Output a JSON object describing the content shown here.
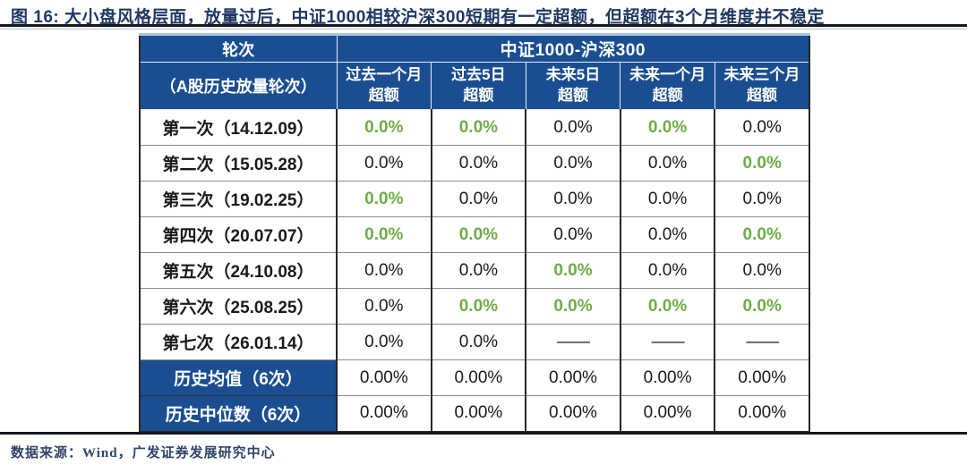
{
  "figure": {
    "title": "图 16: 大小盘风格层面，放量过后，中证1000相较沪深300短期有一定超额，但超额在3个月维度并不稳定",
    "source": "数据来源：Wind，广发证券发展研究中心"
  },
  "colors": {
    "title_navy": "#1F3864",
    "header_blue": "#1B4E91",
    "positive_green": "#6FAD47",
    "text_black": "#1A1A1A"
  },
  "table": {
    "corner_top": "轮次",
    "corner_bottom": "（A股历史放量轮次）",
    "group_header": "中证1000-沪深300",
    "col_headers": [
      {
        "line1": "过去一个月",
        "line2": "超额"
      },
      {
        "line1": "过去5日",
        "line2": "超额"
      },
      {
        "line1": "未来5日",
        "line2": "超额"
      },
      {
        "line1": "未来一个月",
        "line2": "超额"
      },
      {
        "line1": "未来三个月",
        "line2": "超额"
      }
    ],
    "rows": [
      {
        "label": "第一次（14.12.09）",
        "cells": [
          {
            "text": "0.0%",
            "color": "green"
          },
          {
            "text": "0.0%",
            "color": "green"
          },
          {
            "text": "0.0%",
            "color": "black"
          },
          {
            "text": "0.0%",
            "color": "green"
          },
          {
            "text": "0.0%",
            "color": "black"
          }
        ]
      },
      {
        "label": "第二次（15.05.28）",
        "cells": [
          {
            "text": "0.0%",
            "color": "black"
          },
          {
            "text": "0.0%",
            "color": "black"
          },
          {
            "text": "0.0%",
            "color": "black"
          },
          {
            "text": "0.0%",
            "color": "black"
          },
          {
            "text": "0.0%",
            "color": "green"
          }
        ]
      },
      {
        "label": "第三次（19.02.25）",
        "cells": [
          {
            "text": "0.0%",
            "color": "green"
          },
          {
            "text": "0.0%",
            "color": "black"
          },
          {
            "text": "0.0%",
            "color": "black"
          },
          {
            "text": "0.0%",
            "color": "black"
          },
          {
            "text": "0.0%",
            "color": "black"
          }
        ]
      },
      {
        "label": "第四次（20.07.07）",
        "cells": [
          {
            "text": "0.0%",
            "color": "green"
          },
          {
            "text": "0.0%",
            "color": "green"
          },
          {
            "text": "0.0%",
            "color": "black"
          },
          {
            "text": "0.0%",
            "color": "black"
          },
          {
            "text": "0.0%",
            "color": "green"
          }
        ]
      },
      {
        "label": "第五次（24.10.08）",
        "cells": [
          {
            "text": "0.0%",
            "color": "black"
          },
          {
            "text": "0.0%",
            "color": "black"
          },
          {
            "text": "0.0%",
            "color": "green"
          },
          {
            "text": "0.0%",
            "color": "black"
          },
          {
            "text": "0.0%",
            "color": "black"
          }
        ]
      },
      {
        "label": "第六次（25.08.25）",
        "cells": [
          {
            "text": "0.0%",
            "color": "black"
          },
          {
            "text": "0.0%",
            "color": "green"
          },
          {
            "text": "0.0%",
            "color": "green"
          },
          {
            "text": "0.0%",
            "color": "green"
          },
          {
            "text": "0.0%",
            "color": "green"
          }
        ]
      },
      {
        "label": "第七次（26.01.14）",
        "cells": [
          {
            "text": "0.0%",
            "color": "black"
          },
          {
            "text": "0.0%",
            "color": "black"
          },
          {
            "text": "——",
            "color": "dash"
          },
          {
            "text": "——",
            "color": "dash"
          },
          {
            "text": "——",
            "color": "dash"
          }
        ]
      },
      {
        "label": "历史均值（6次）",
        "cells": [
          {
            "text": "0.00%",
            "color": "black"
          },
          {
            "text": "0.00%",
            "color": "black"
          },
          {
            "text": "0.00%",
            "color": "black"
          },
          {
            "text": "0.00%",
            "color": "black"
          },
          {
            "text": "0.00%",
            "color": "black"
          }
        ]
      },
      {
        "label": "历史中位数（6次）",
        "cells": [
          {
            "text": "0.00%",
            "color": "black"
          },
          {
            "text": "0.00%",
            "color": "black"
          },
          {
            "text": "0.00%",
            "color": "black"
          },
          {
            "text": "0.00%",
            "color": "black"
          },
          {
            "text": "0.00%",
            "color": "black"
          }
        ]
      }
    ]
  },
  "chart_data": {
    "type": "table",
    "title": "图 16: 大小盘风格层面，放量过后，中证1000相较沪深300短期有一定超额，但超额在3个月维度并不稳定",
    "group_header": "中证1000-沪深300",
    "columns": [
      "轮次（A股历史放量轮次）",
      "过去一个月超额",
      "过去5日超额",
      "未来5日超额",
      "未来一个月超额",
      "未来三个月超额"
    ],
    "rows": [
      [
        "第一次（14.12.09）",
        "0.0%",
        "0.0%",
        "0.0%",
        "0.0%",
        "0.0%"
      ],
      [
        "第二次（15.05.28）",
        "0.0%",
        "0.0%",
        "0.0%",
        "0.0%",
        "0.0%"
      ],
      [
        "第三次（19.02.25）",
        "0.0%",
        "0.0%",
        "0.0%",
        "0.0%",
        "0.0%"
      ],
      [
        "第四次（20.07.07）",
        "0.0%",
        "0.0%",
        "0.0%",
        "0.0%",
        "0.0%"
      ],
      [
        "第五次（24.10.08）",
        "0.0%",
        "0.0%",
        "0.0%",
        "0.0%",
        "0.0%"
      ],
      [
        "第六次（25.08.25）",
        "0.0%",
        "0.0%",
        "0.0%",
        "0.0%",
        "0.0%"
      ],
      [
        "第七次（26.01.14）",
        "0.0%",
        "0.0%",
        "——",
        "——",
        "——"
      ],
      [
        "历史均值（6次）",
        "0.00%",
        "0.00%",
        "0.00%",
        "0.00%",
        "0.00%"
      ],
      [
        "历史中位数（6次）",
        "0.00%",
        "0.00%",
        "0.00%",
        "0.00%",
        "0.00%"
      ]
    ],
    "green_highlight_cells": "positive excess-return cells rendered in green #6FAD47"
  }
}
